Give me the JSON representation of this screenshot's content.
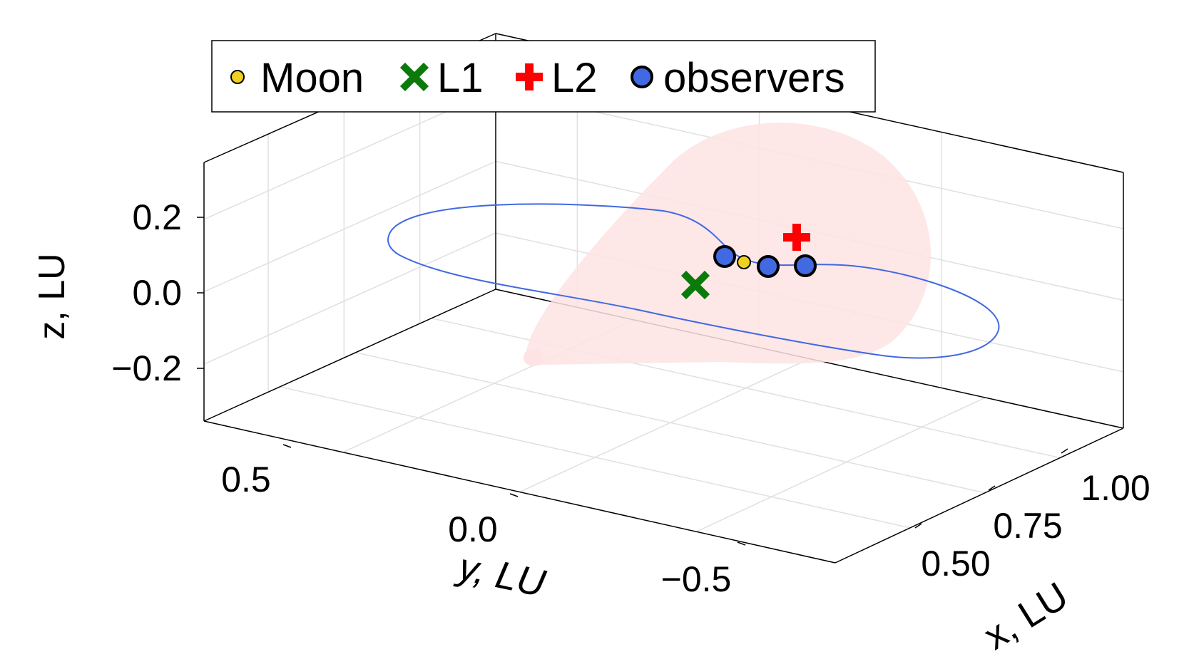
{
  "chart_data": {
    "type": "scatter",
    "projection": "3d",
    "legend": {
      "placement": "top",
      "entries": [
        {
          "label": "Moon",
          "marker": "circle-small",
          "color": "#f0d020"
        },
        {
          "label": "L1",
          "marker": "x",
          "color": "#0a7a0a"
        },
        {
          "label": "L2",
          "marker": "cross",
          "color": "#ff0000"
        },
        {
          "label": "observers",
          "marker": "circle",
          "color": "#4169e1"
        }
      ]
    },
    "axes": {
      "x": {
        "label": "x, LU",
        "ticks": [
          "0.50",
          "0.75",
          "1.00"
        ],
        "tick_values": [
          0.5,
          0.75,
          1.0
        ],
        "range": [
          0.4,
          1.1
        ]
      },
      "y": {
        "label": "y, LU",
        "ticks": [
          "0.5",
          "0.0",
          "−0.5"
        ],
        "tick_values": [
          0.5,
          0.0,
          -0.5
        ],
        "range": [
          -0.8,
          0.8
        ]
      },
      "z": {
        "label": "z, LU",
        "ticks": [
          "0.2",
          "0.0",
          "−0.2"
        ],
        "tick_values": [
          0.2,
          0.0,
          -0.2
        ],
        "range": [
          -0.34,
          0.34
        ]
      }
    },
    "grid": true,
    "series": [
      {
        "name": "orbit",
        "kind": "line",
        "color": "#4169e1"
      },
      {
        "name": "cone",
        "kind": "surface",
        "color": "#fde3e3"
      },
      {
        "name": "Moon",
        "kind": "point",
        "color": "#f0d020",
        "points": [
          [
            0.99,
            0.0,
            0.0
          ]
        ]
      },
      {
        "name": "L1",
        "kind": "point",
        "color": "#0a7a0a",
        "points": [
          [
            0.84,
            0.0,
            0.0
          ]
        ]
      },
      {
        "name": "L2",
        "kind": "point",
        "color": "#ff0000",
        "points": [
          [
            1.16,
            0.0,
            0.0
          ]
        ]
      },
      {
        "name": "observers",
        "kind": "point",
        "color": "#4169e1",
        "points": [
          [
            0.96,
            0.08,
            0.03
          ],
          [
            1.02,
            -0.06,
            0.0
          ],
          [
            1.08,
            -0.15,
            0.0
          ]
        ]
      }
    ],
    "colors": {
      "axis": "#000000",
      "grid": "#e0e0e0",
      "orbit": "#4169e1",
      "cone": "#fde3e3"
    }
  }
}
